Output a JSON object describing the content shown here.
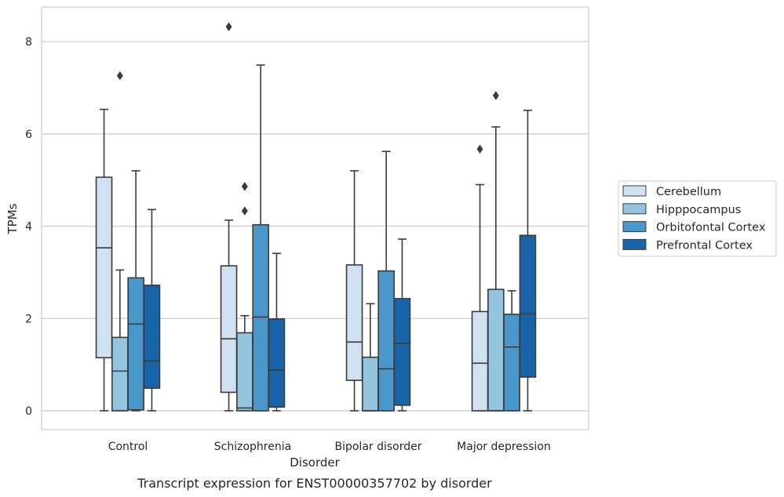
{
  "chart_data": {
    "type": "box",
    "title": "",
    "caption": "Transcript expression for ENST00000357702 by disorder",
    "xlabel": "Disorder",
    "ylabel": "TPMs",
    "ylim": [
      -0.4,
      8.75
    ],
    "yticks": [
      0,
      2,
      4,
      6,
      8
    ],
    "grid": "horizontal",
    "legend_placement": "right",
    "categories": [
      "Control",
      "Schizophrenia",
      "Bipolar disorder",
      "Major depression"
    ],
    "series": [
      {
        "name": "Cerebellum",
        "color": "#d0e1f2",
        "boxes": [
          {
            "whisker_low": 0.0,
            "q1": 1.15,
            "median": 3.53,
            "q3": 5.06,
            "whisker_high": 6.53,
            "outliers": []
          },
          {
            "whisker_low": 0.0,
            "q1": 0.4,
            "median": 1.56,
            "q3": 3.14,
            "whisker_high": 4.13,
            "outliers": [
              8.32
            ]
          },
          {
            "whisker_low": 0.0,
            "q1": 0.66,
            "median": 1.49,
            "q3": 3.16,
            "whisker_high": 5.2,
            "outliers": []
          },
          {
            "whisker_low": 0.0,
            "q1": 0.0,
            "median": 1.03,
            "q3": 2.15,
            "whisker_high": 4.9,
            "outliers": [
              5.67
            ]
          }
        ]
      },
      {
        "name": "Hipppocampus",
        "color": "#94c4df",
        "boxes": [
          {
            "whisker_low": 0.0,
            "q1": 0.0,
            "median": 0.86,
            "q3": 1.59,
            "whisker_high": 3.05,
            "outliers": [
              7.26
            ]
          },
          {
            "whisker_low": 0.0,
            "q1": 0.0,
            "median": 0.06,
            "q3": 1.69,
            "whisker_high": 2.06,
            "outliers": [
              4.33,
              4.86
            ]
          },
          {
            "whisker_low": 0.0,
            "q1": 0.0,
            "median": 0.0,
            "q3": 1.16,
            "whisker_high": 2.32,
            "outliers": []
          },
          {
            "whisker_low": 0.0,
            "q1": 0.0,
            "median": 0.0,
            "q3": 2.63,
            "whisker_high": 6.15,
            "outliers": [
              6.83
            ]
          }
        ]
      },
      {
        "name": "Orbitofontal Cortex",
        "color": "#4a98c9",
        "boxes": [
          {
            "whisker_low": 0.0,
            "q1": 0.02,
            "median": 1.88,
            "q3": 2.88,
            "whisker_high": 5.2,
            "outliers": []
          },
          {
            "whisker_low": 0.0,
            "q1": 0.0,
            "median": 2.03,
            "q3": 4.03,
            "whisker_high": 7.49,
            "outliers": []
          },
          {
            "whisker_low": 0.0,
            "q1": 0.0,
            "median": 0.91,
            "q3": 3.03,
            "whisker_high": 5.62,
            "outliers": []
          },
          {
            "whisker_low": 0.0,
            "q1": 0.0,
            "median": 1.38,
            "q3": 2.09,
            "whisker_high": 2.6,
            "outliers": []
          }
        ]
      },
      {
        "name": "Prefrontal Cortex",
        "color": "#1764ab",
        "boxes": [
          {
            "whisker_low": 0.0,
            "q1": 0.49,
            "median": 1.08,
            "q3": 2.72,
            "whisker_high": 4.36,
            "outliers": []
          },
          {
            "whisker_low": 0.0,
            "q1": 0.08,
            "median": 0.88,
            "q3": 1.99,
            "whisker_high": 3.41,
            "outliers": []
          },
          {
            "whisker_low": 0.0,
            "q1": 0.12,
            "median": 1.46,
            "q3": 2.43,
            "whisker_high": 3.72,
            "outliers": []
          },
          {
            "whisker_low": 0.0,
            "q1": 0.73,
            "median": 2.1,
            "q3": 3.8,
            "whisker_high": 6.51,
            "outliers": []
          }
        ]
      }
    ]
  }
}
